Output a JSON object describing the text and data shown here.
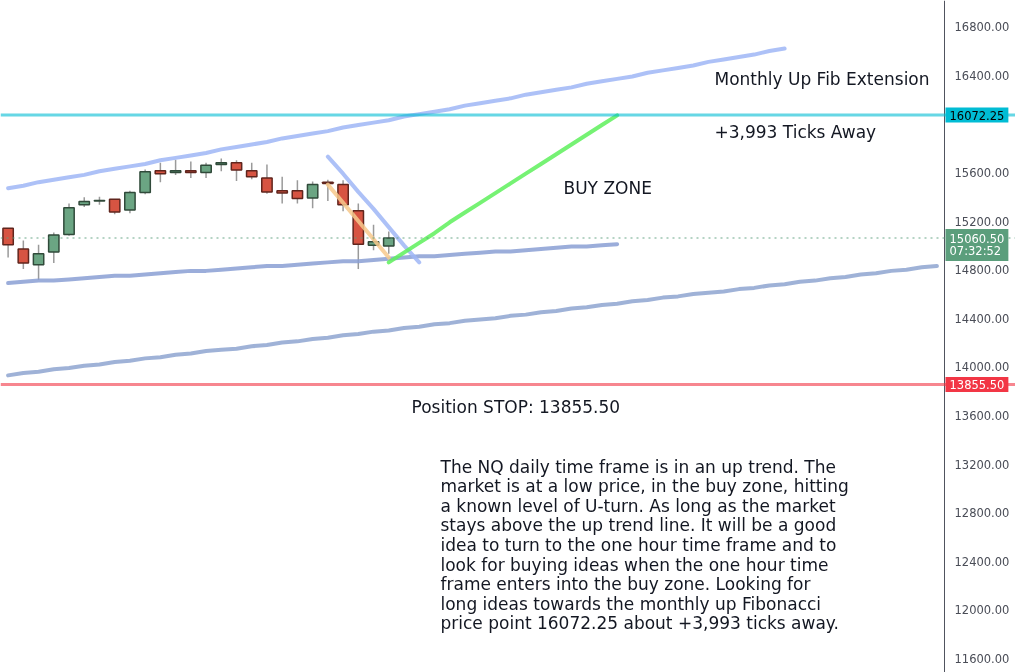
{
  "chart_data": {
    "type": "candlestick",
    "categories": [
      null,
      null,
      null,
      null,
      null,
      null,
      null,
      null,
      null,
      null,
      null,
      null,
      null,
      null,
      null,
      null,
      null,
      null,
      null,
      null,
      null,
      null,
      null,
      null,
      null,
      null,
      null,
      null,
      null,
      null,
      null,
      null,
      null,
      null,
      null,
      null,
      null,
      null,
      null,
      null,
      null,
      null,
      null,
      null,
      null,
      null,
      null,
      null,
      null,
      null,
      null,
      null,
      null,
      null,
      null,
      null,
      null,
      null,
      null,
      null,
      null,
      null
    ],
    "ohlc": [
      [
        15140,
        15140,
        14900,
        15005
      ],
      [
        14970,
        15040,
        14805,
        14855
      ],
      [
        14840,
        15005,
        14715,
        14930
      ],
      [
        14945,
        15105,
        14855,
        15085
      ],
      [
        15090,
        15345,
        15080,
        15310
      ],
      [
        15335,
        15395,
        15315,
        15360
      ],
      [
        15365,
        15400,
        15335,
        15370
      ],
      [
        15380,
        15380,
        15255,
        15275
      ],
      [
        15290,
        15450,
        15265,
        15435
      ],
      [
        15435,
        15625,
        15420,
        15605
      ],
      [
        15615,
        15680,
        15520,
        15590
      ],
      [
        15600,
        15705,
        15580,
        15615
      ],
      [
        15615,
        15690,
        15555,
        15600
      ],
      [
        15600,
        15680,
        15555,
        15660
      ],
      [
        15665,
        15715,
        15610,
        15680
      ],
      [
        15680,
        15700,
        15530,
        15620
      ],
      [
        15615,
        15680,
        15545,
        15565
      ],
      [
        15555,
        15665,
        15425,
        15440
      ],
      [
        15450,
        15565,
        15345,
        15430
      ],
      [
        15450,
        15535,
        15345,
        15385
      ],
      [
        15390,
        15525,
        15305,
        15500
      ],
      [
        15520,
        15540,
        15365,
        15510
      ],
      [
        15500,
        15535,
        15280,
        15335
      ],
      [
        15285,
        15345,
        14805,
        15010
      ],
      [
        15000,
        15170,
        14960,
        15030
      ],
      [
        14995,
        15115,
        14930,
        15060.5
      ],
      null,
      null,
      null,
      null,
      null,
      null,
      null,
      null,
      null,
      null,
      null,
      null,
      null,
      null,
      null,
      null,
      null,
      null,
      null,
      null,
      null,
      null,
      null,
      null,
      null,
      null,
      null,
      null,
      null,
      null,
      null,
      null,
      null,
      null,
      null,
      null
    ],
    "colors": [
      "#d75442",
      "#d75442",
      "#6ba583",
      "#6ba583",
      "#6ba583",
      "#6ba583",
      "#6ba583",
      "#d75442",
      "#6ba583",
      "#6ba583",
      "#d75442",
      "#6ba583",
      "#d75442",
      "#6ba583",
      "#6ba583",
      "#d75442",
      "#d75442",
      "#d75442",
      "#d75442",
      "#d75442",
      "#6ba583",
      "#d75442",
      "#d75442",
      "#d75442",
      "#6ba583",
      "#6ba583",
      null,
      null,
      null,
      null,
      null,
      null,
      null,
      null,
      null,
      null,
      null,
      null,
      null,
      null,
      null,
      null,
      null,
      null,
      null,
      null,
      null,
      null,
      null,
      null,
      null,
      null,
      null,
      null,
      null,
      null,
      null,
      null,
      null,
      null,
      null,
      null
    ],
    "series": [
      {
        "type": "line",
        "color": "#9fb6f6",
        "values": [
          15470,
          15490,
          15520,
          15540,
          15560,
          15580,
          15610,
          15630,
          15650,
          15670,
          15700,
          15720,
          15740,
          15760,
          15790,
          15810,
          15830,
          15850,
          15880,
          15900,
          15920,
          15940,
          15970,
          15990,
          16010,
          16030,
          16060,
          16080,
          16100,
          16120,
          16150,
          16170,
          16190,
          16210,
          16240,
          16260,
          16280,
          16300,
          16330,
          16350,
          16370,
          16390,
          16420,
          16440,
          16460,
          16480,
          16510,
          16530,
          16550,
          16570,
          16600,
          16620,
          null,
          null,
          null,
          null,
          null,
          null,
          null,
          null,
          null,
          null
        ]
      },
      {
        "type": "line",
        "color": "#8a9fd3",
        "values": [
          14690,
          14700,
          14710,
          14710,
          14720,
          14730,
          14740,
          14750,
          14750,
          14760,
          14770,
          14780,
          14790,
          14790,
          14800,
          14810,
          14820,
          14830,
          14830,
          14840,
          14850,
          14860,
          14870,
          14870,
          14880,
          14890,
          14900,
          14910,
          14910,
          14920,
          14930,
          14940,
          14950,
          14950,
          14960,
          14970,
          14980,
          14990,
          14990,
          15000,
          15010,
          null,
          null,
          null,
          null,
          null,
          null,
          null,
          null,
          null,
          null,
          null,
          null,
          null,
          null,
          null,
          null,
          null,
          null,
          null,
          null,
          null
        ]
      },
      {
        "type": "line",
        "color": "#8ea5d0",
        "values": [
          13930,
          13950,
          13960,
          13980,
          13990,
          14010,
          14020,
          14040,
          14050,
          14070,
          14080,
          14100,
          14110,
          14130,
          14140,
          14150,
          14170,
          14180,
          14200,
          14210,
          14230,
          14240,
          14260,
          14270,
          14290,
          14300,
          14320,
          14330,
          14350,
          14360,
          14380,
          14390,
          14400,
          14420,
          14430,
          14450,
          14460,
          14480,
          14490,
          14510,
          14520,
          14540,
          14550,
          14570,
          14580,
          14600,
          14610,
          14620,
          14640,
          14650,
          14670,
          14680,
          14700,
          14710,
          14730,
          14740,
          14760,
          14770,
          14790,
          14800,
          14820,
          14830
        ]
      },
      {
        "type": "line",
        "color": "#9fb6f6",
        "values": [
          null,
          null,
          null,
          null,
          null,
          null,
          null,
          null,
          null,
          null,
          null,
          null,
          null,
          null,
          null,
          null,
          null,
          null,
          null,
          null,
          null,
          15730,
          15590,
          15440,
          15300,
          15150,
          15000,
          14860,
          null,
          null,
          null,
          null,
          null,
          null,
          null,
          null,
          null,
          null,
          null,
          null,
          null,
          null,
          null,
          null,
          null,
          null,
          null,
          null,
          null,
          null,
          null,
          null,
          null,
          null,
          null,
          null,
          null,
          null,
          null,
          null,
          null,
          null
        ]
      },
      {
        "type": "line",
        "color": "#f7c98c",
        "values": [
          null,
          null,
          null,
          null,
          null,
          null,
          null,
          null,
          null,
          null,
          null,
          null,
          null,
          null,
          null,
          null,
          null,
          null,
          null,
          null,
          null,
          15500,
          15350,
          15200,
          15050,
          14900,
          null,
          null,
          null,
          null,
          null,
          null,
          null,
          null,
          null,
          null,
          null,
          null,
          null,
          null,
          null,
          null,
          null,
          null,
          null,
          null,
          null,
          null,
          null,
          null,
          null,
          null,
          null,
          null,
          null,
          null,
          null,
          null,
          null,
          null,
          null,
          null
        ]
      },
      {
        "type": "line",
        "color": "#5ef05c",
        "values": [
          null,
          null,
          null,
          null,
          null,
          null,
          null,
          null,
          null,
          null,
          null,
          null,
          null,
          null,
          null,
          null,
          null,
          null,
          null,
          null,
          null,
          null,
          null,
          null,
          null,
          14860,
          14940,
          15020,
          15100,
          15190,
          15270,
          15350,
          15430,
          15510,
          15590,
          15670,
          15750,
          15830,
          15910,
          15990,
          16070,
          null,
          null,
          null,
          null,
          null,
          null,
          null,
          null,
          null,
          null,
          null,
          null,
          null,
          null,
          null,
          null,
          null,
          null,
          null,
          null,
          null
        ]
      }
    ],
    "ylim": [
      11485,
      17015
    ],
    "yticks": [
      {
        "value": 11600,
        "label": "11600.00"
      },
      {
        "value": 12000,
        "label": "12000.00"
      },
      {
        "value": 12400,
        "label": "12400.00"
      },
      {
        "value": 12800,
        "label": "12800.00"
      },
      {
        "value": 13200,
        "label": "13200.00"
      },
      {
        "value": 13600,
        "label": "13600.00"
      },
      {
        "value": 14000,
        "label": "14000.00"
      },
      {
        "value": 14400,
        "label": "14400.00"
      },
      {
        "value": 14800,
        "label": "14800.00"
      },
      {
        "value": 15200,
        "label": "15200.00"
      },
      {
        "value": 15600,
        "label": "15600.00"
      },
      {
        "value": 16400,
        "label": "16400.00"
      },
      {
        "value": 16800,
        "label": "16800.00"
      }
    ],
    "tick_labels": "y",
    "ref_lines": [
      {
        "axis": "y",
        "value": 16072.25,
        "label": "16072.25",
        "color": "#00bcd4"
      },
      {
        "axis": "y",
        "value": 15060.5,
        "label": "15060.50\n07:32:52",
        "color": "#5b9e7c",
        "line_style": "dotted"
      },
      {
        "axis": "y",
        "value": 13855.5,
        "label": "13855.50",
        "color": "#f23645"
      }
    ],
    "annotations": [
      "Monthly Up Fib Extension",
      "+3,993 Ticks Away",
      "BUY ZONE",
      "Position STOP: 13855.50",
      "The NQ daily time frame is in an up trend. The\nmarket is at a low price, in the buy zone, hitting\na known level of U-turn. As long as the market\nstays above the up trend line. It will be a good\nidea to turn to the one hour time frame and to\nlook for buying ideas when the one hour time\nframe enters into the buy zone. Looking for\nlong ideas towards the monthly up Fibonacci\nprice point 16072.25 about +3,993 ticks away."
    ]
  }
}
